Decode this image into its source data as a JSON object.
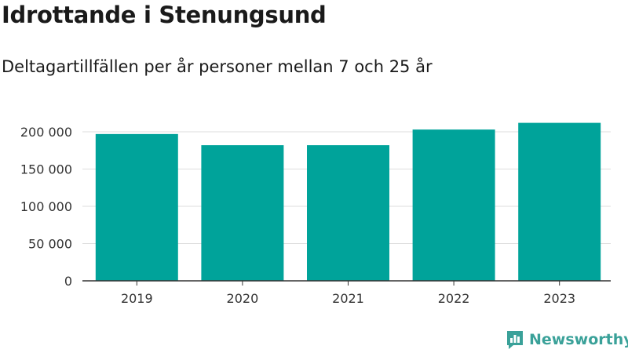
{
  "title": "Idrottande i Stenungsund",
  "subtitle": "Deltagartillfällen per år personer mellan 7 och 25 år",
  "brand": {
    "name": "Newsworthy",
    "icon": "newsworthy-logo-icon",
    "color": "#3aa199"
  },
  "colors": {
    "bar": "#00a39a",
    "grid": "#dddddd",
    "axis": "#333333"
  },
  "chart_data": {
    "type": "bar",
    "categories": [
      "2019",
      "2020",
      "2021",
      "2022",
      "2023"
    ],
    "values": [
      197000,
      182000,
      182000,
      203000,
      212000
    ],
    "ylim": [
      0,
      200000
    ],
    "yticks": [
      0,
      50000,
      100000,
      150000,
      200000
    ],
    "ytick_labels": [
      "0",
      "50 000",
      "100 000",
      "150 000",
      "200 000"
    ],
    "grid": true,
    "legend": "none"
  }
}
